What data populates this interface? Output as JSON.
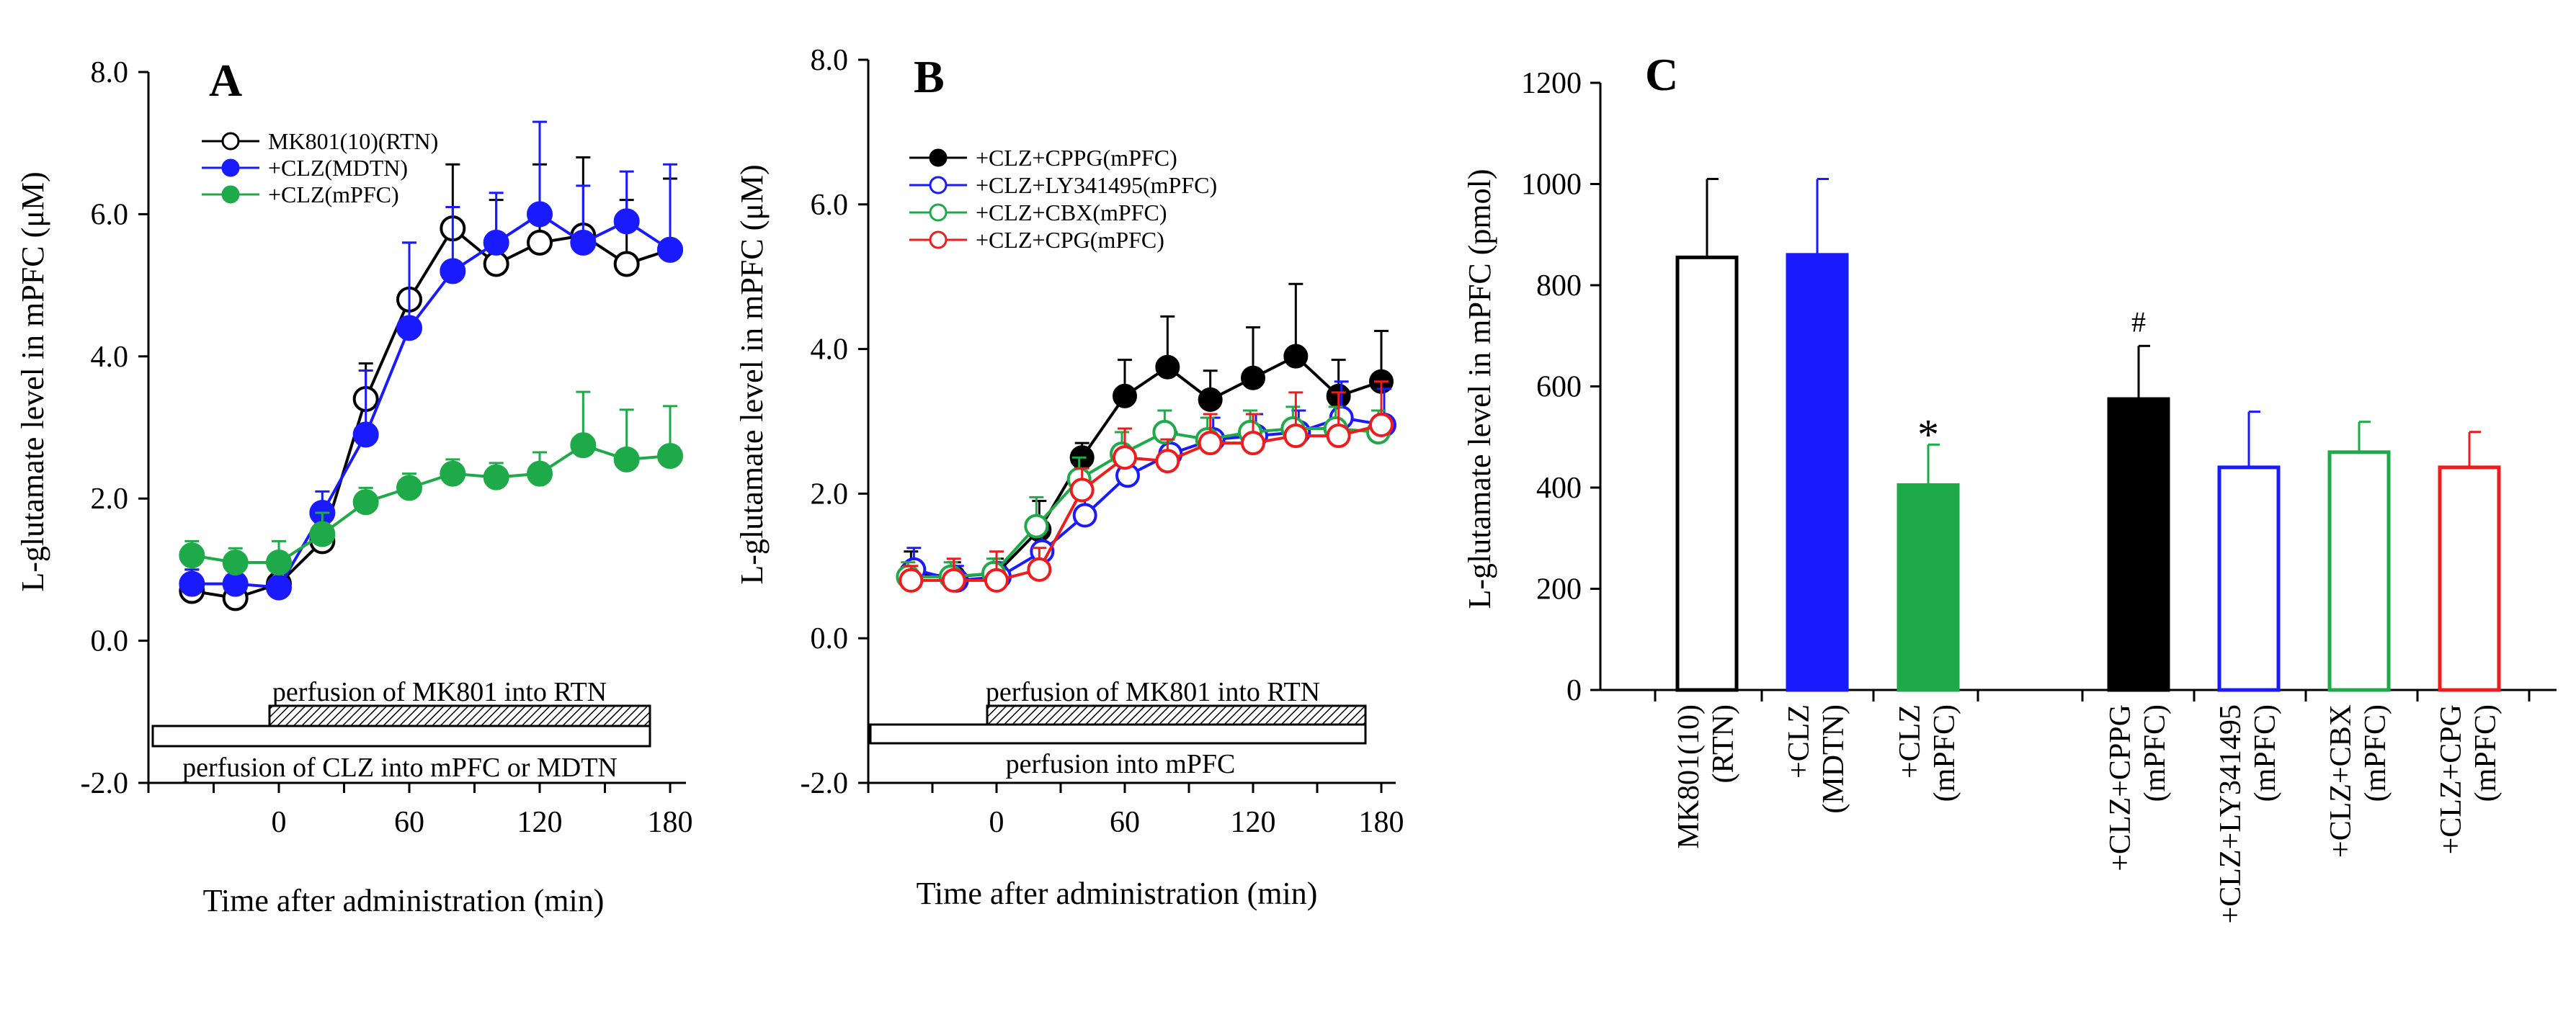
{
  "chart_data": [
    {
      "type": "line",
      "panel": "A",
      "ylabel": "L-glutamate level in mPFC (μM)",
      "xlabel": "Time after administration (min)",
      "ylim": [
        -2.0,
        8.0
      ],
      "yticks": [
        "-2.0",
        "0.0",
        "2.0",
        "4.0",
        "6.0",
        "8.0"
      ],
      "xticks": [
        "0",
        "60",
        "120",
        "180"
      ],
      "bar_labels": {
        "top": "perfusion of MK801 into RTN",
        "bottom": "perfusion of CLZ into mPFC or MDTN"
      },
      "x": [
        -40,
        -20,
        0,
        20,
        40,
        60,
        80,
        100,
        120,
        140,
        160,
        180
      ],
      "series": [
        {
          "name": "MK801(10)(RTN)",
          "color": "#000000",
          "marker": "open",
          "values": [
            0.7,
            0.6,
            0.8,
            1.4,
            3.4,
            4.8,
            5.8,
            5.3,
            5.6,
            5.7,
            5.3,
            5.5
          ],
          "errors": [
            0.3,
            0.3,
            0.3,
            0.3,
            0.5,
            0.8,
            0.9,
            0.9,
            1.1,
            1.1,
            0.9,
            1.0
          ]
        },
        {
          "name": "+CLZ(MDTN)",
          "color": "#1a1aff",
          "marker": "filled",
          "values": [
            0.8,
            0.8,
            0.75,
            1.8,
            2.9,
            4.4,
            5.2,
            5.6,
            6.0,
            5.6,
            5.9,
            5.5
          ],
          "errors": [
            0.2,
            0.2,
            0.2,
            0.3,
            0.9,
            1.2,
            0.9,
            0.7,
            1.3,
            0.8,
            0.7,
            1.2
          ]
        },
        {
          "name": "+CLZ(mPFC)",
          "color": "#1faa4a",
          "marker": "filled",
          "values": [
            1.2,
            1.1,
            1.1,
            1.5,
            1.95,
            2.15,
            2.35,
            2.3,
            2.35,
            2.75,
            2.55,
            2.6
          ],
          "errors": [
            0.2,
            0.2,
            0.3,
            0.3,
            0.2,
            0.2,
            0.2,
            0.2,
            0.3,
            0.75,
            0.7,
            0.7
          ]
        }
      ]
    },
    {
      "type": "line",
      "panel": "B",
      "ylabel": "L-glutamate level in mPFC (μM)",
      "xlabel": "Time after administration (min)",
      "ylim": [
        -2.0,
        8.0
      ],
      "yticks": [
        "-2.0",
        "0.0",
        "2.0",
        "4.0",
        "6.0",
        "8.0"
      ],
      "xticks": [
        "0",
        "60",
        "120",
        "180"
      ],
      "bar_labels": {
        "top": "perfusion of MK801 into RTN",
        "bottom": "perfusion into mPFC"
      },
      "x": [
        -40,
        -20,
        0,
        20,
        40,
        60,
        80,
        100,
        120,
        140,
        160,
        180
      ],
      "series": [
        {
          "name": "+CLZ+CPPG(mPFC)",
          "color": "#000000",
          "marker": "filled",
          "values": [
            0.9,
            0.85,
            0.9,
            1.5,
            2.5,
            3.35,
            3.75,
            3.3,
            3.6,
            3.9,
            3.35,
            3.55
          ],
          "errors": [
            0.3,
            0.2,
            0.2,
            0.4,
            0.2,
            0.5,
            0.7,
            0.4,
            0.7,
            1.0,
            0.5,
            0.7
          ]
        },
        {
          "name": "+CLZ+LY341495(mPFC)",
          "color": "#1a1aff",
          "marker": "open",
          "values": [
            0.95,
            0.8,
            0.85,
            1.2,
            1.7,
            2.25,
            2.55,
            2.75,
            2.8,
            2.85,
            3.05,
            2.95
          ],
          "errors": [
            0.3,
            0.2,
            0.2,
            0.3,
            0.3,
            0.3,
            0.3,
            0.3,
            0.3,
            0.3,
            0.5,
            0.5
          ]
        },
        {
          "name": "+CLZ+CBX(mPFC)",
          "color": "#1faa4a",
          "marker": "open",
          "values": [
            0.85,
            0.85,
            0.9,
            1.55,
            2.2,
            2.55,
            2.85,
            2.75,
            2.85,
            2.9,
            2.9,
            2.85
          ],
          "errors": [
            0.2,
            0.2,
            0.2,
            0.4,
            0.3,
            0.3,
            0.3,
            0.3,
            0.3,
            0.3,
            0.3,
            0.3
          ]
        },
        {
          "name": "+CLZ+CPG(mPFC)",
          "color": "#ee1c1c",
          "marker": "open",
          "values": [
            0.8,
            0.8,
            0.8,
            0.95,
            2.05,
            2.5,
            2.45,
            2.7,
            2.7,
            2.8,
            2.8,
            2.95
          ],
          "errors": [
            0.2,
            0.3,
            0.4,
            0.3,
            0.3,
            0.4,
            0.3,
            0.4,
            0.4,
            0.6,
            0.6,
            0.6
          ]
        }
      ]
    },
    {
      "type": "bar",
      "panel": "C",
      "ylabel": "L-glutamate level in mPFC (pmol)",
      "ylim": [
        0,
        1200
      ],
      "yticks": [
        "0",
        "200",
        "400",
        "600",
        "800",
        "1000",
        "1200"
      ],
      "bars": [
        {
          "label1": "MK801(10)",
          "label2": "(RTN)",
          "value": 855,
          "error": 155,
          "fill": "#ffffff",
          "stroke": "#000000",
          "mark": ""
        },
        {
          "label1": "+CLZ",
          "label2": "(MDTN)",
          "value": 860,
          "error": 150,
          "fill": "#1a1aff",
          "stroke": "#1a1aff",
          "mark": ""
        },
        {
          "label1": "+CLZ",
          "label2": "(mPFC)",
          "value": 405,
          "error": 80,
          "fill": "#1faa4a",
          "stroke": "#1faa4a",
          "mark": "*"
        },
        {
          "label1": "+CLZ+CPPG",
          "label2": "(mPFC)",
          "value": 575,
          "error": 105,
          "fill": "#000000",
          "stroke": "#000000",
          "mark": "#"
        },
        {
          "label1": "+CLZ+LY341495",
          "label2": "(mPFC)",
          "value": 440,
          "error": 110,
          "fill": "#ffffff",
          "stroke": "#1a1aff",
          "mark": ""
        },
        {
          "label1": "+CLZ+CBX",
          "label2": "(mPFC)",
          "value": 470,
          "error": 60,
          "fill": "#ffffff",
          "stroke": "#1faa4a",
          "mark": ""
        },
        {
          "label1": "+CLZ+CPG",
          "label2": "(mPFC)",
          "value": 440,
          "error": 70,
          "fill": "#ffffff",
          "stroke": "#ee1c1c",
          "mark": ""
        }
      ]
    }
  ]
}
